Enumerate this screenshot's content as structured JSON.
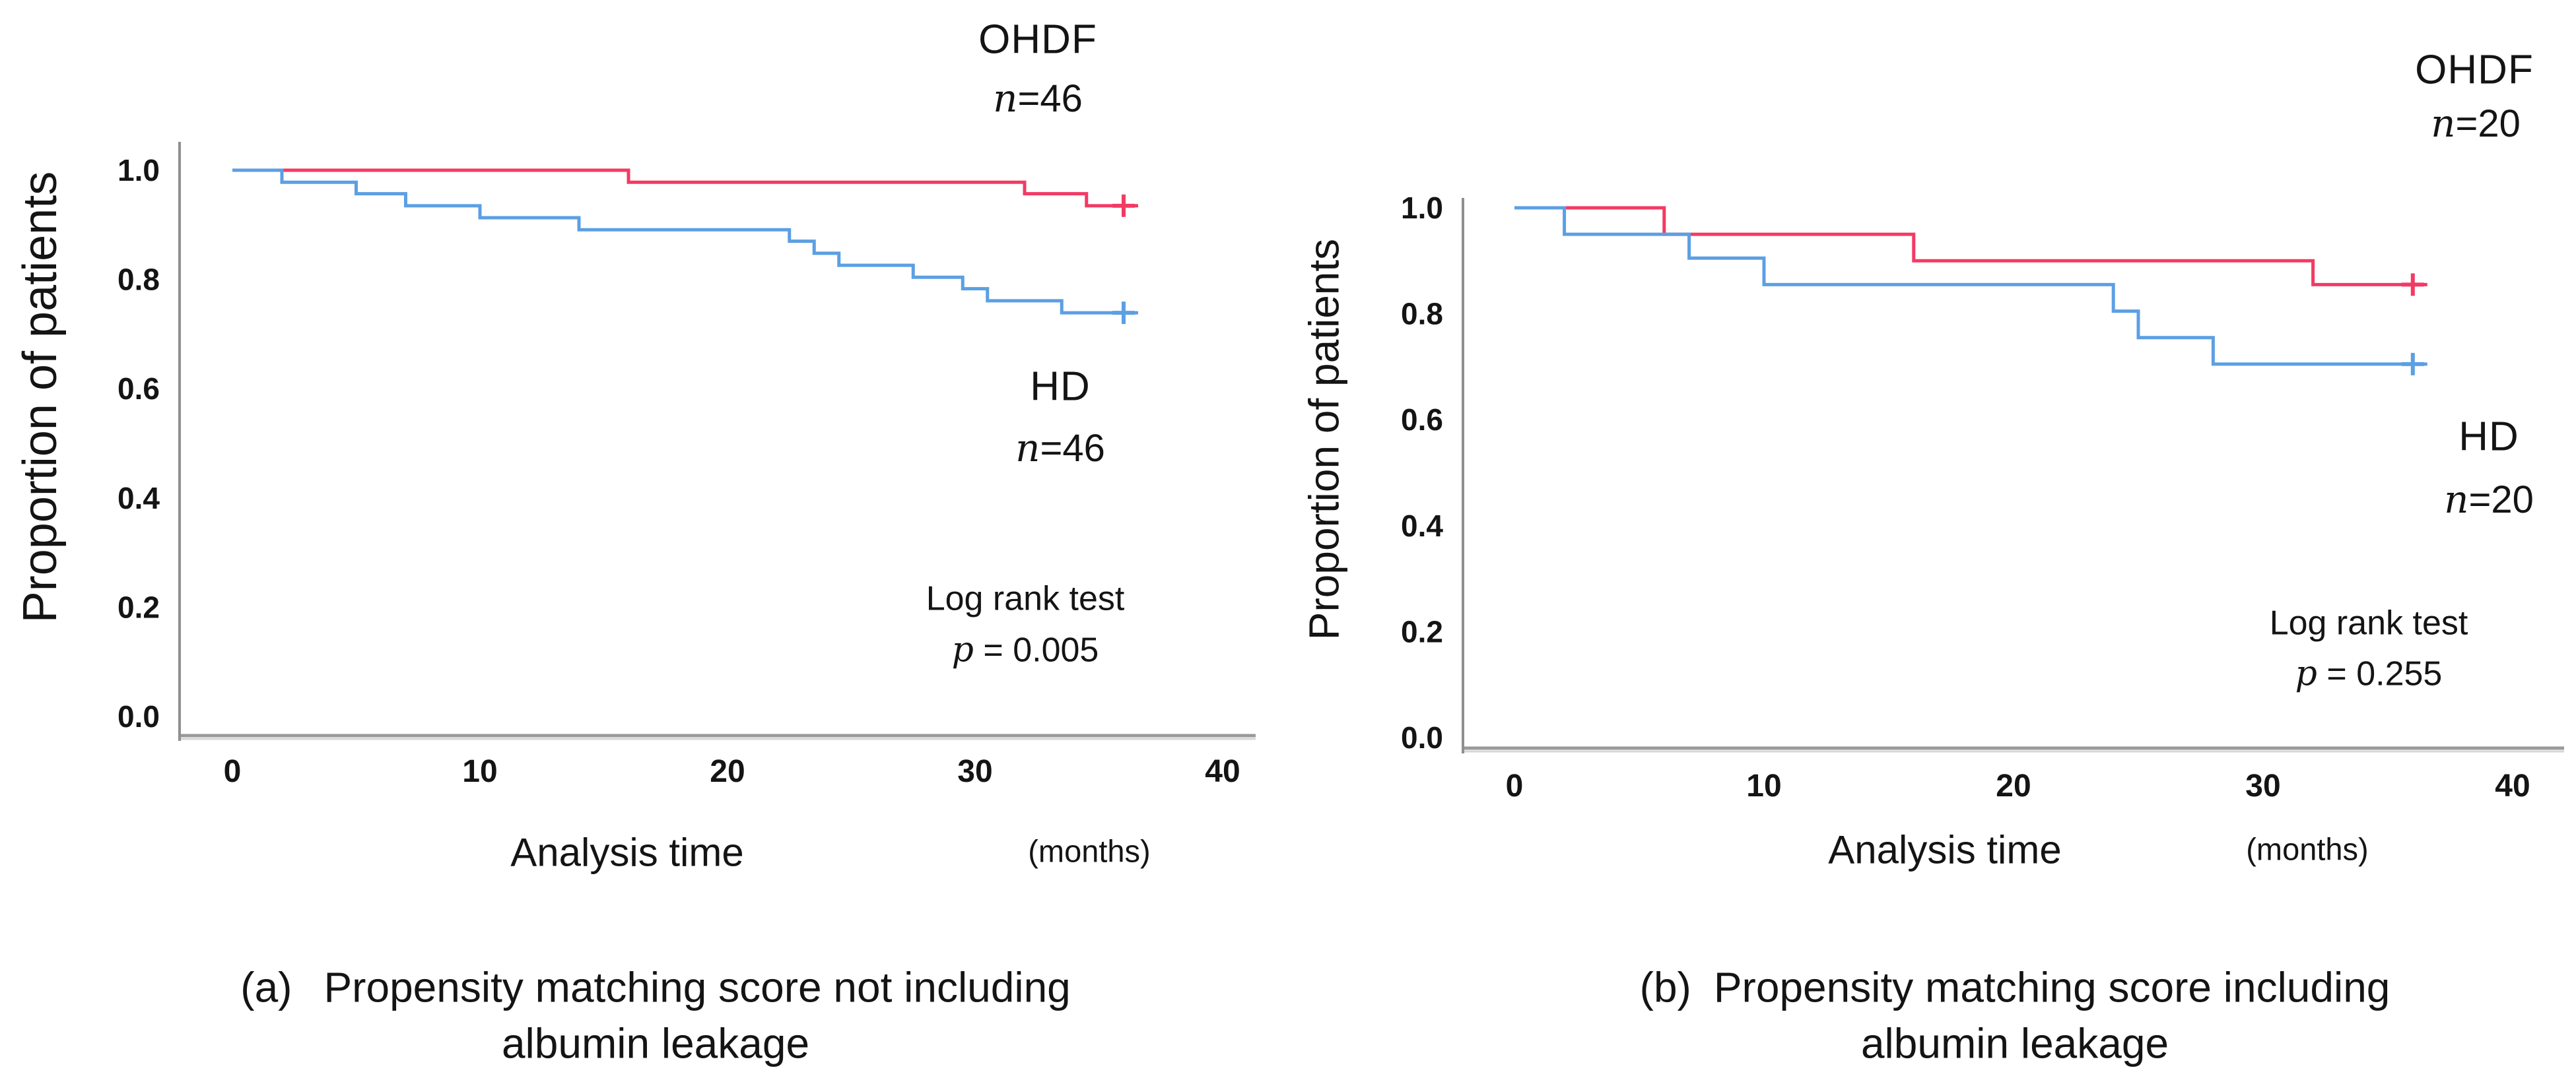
{
  "figure": {
    "background": "#ffffff",
    "axis_color": "#9a9a9a",
    "accent_red": "#f23b64",
    "accent_blue": "#5c9fe3",
    "text_color": "#141414"
  },
  "chart_data": [
    {
      "panel": "a",
      "type": "line",
      "variant": "kaplan-meier-step",
      "ylabel": "Proportion of patients",
      "xlabel": "Analysis time",
      "xlabel_unit": "(months)",
      "grid": false,
      "legend_position": "inline-annotations",
      "xlim": [
        0,
        41
      ],
      "ylim": [
        0.0,
        1.05
      ],
      "xticks": [
        0,
        10,
        20,
        30,
        40
      ],
      "ytick_values": [
        1.0,
        0.8,
        0.6,
        0.4,
        0.2,
        0.0
      ],
      "ytick_labels": [
        "1.0",
        "0.8",
        "0.6",
        "0.4",
        "0.2",
        "0.0"
      ],
      "series": [
        {
          "name": "OHDF",
          "sample_size_label": "n=46",
          "color": "#f23b64",
          "censor_time": 36,
          "final_value": 0.935,
          "steps": [
            [
              0,
              1.0
            ],
            [
              16,
              0.978
            ],
            [
              32,
              0.957
            ],
            [
              34.5,
              0.935
            ]
          ]
        },
        {
          "name": "HD",
          "sample_size_label": "n=46",
          "color": "#5c9fe3",
          "censor_time": 36,
          "final_value": 0.739,
          "steps": [
            [
              0,
              1.0
            ],
            [
              2,
              0.978
            ],
            [
              5,
              0.957
            ],
            [
              7,
              0.935
            ],
            [
              10,
              0.913
            ],
            [
              14,
              0.891
            ],
            [
              22.5,
              0.87
            ],
            [
              23.5,
              0.848
            ],
            [
              24.5,
              0.826
            ],
            [
              27.5,
              0.804
            ],
            [
              29.5,
              0.783
            ],
            [
              30.5,
              0.761
            ],
            [
              33.5,
              0.739
            ]
          ]
        }
      ],
      "stat_test": {
        "line1": "Log rank test",
        "line2": "p = 0.005"
      },
      "caption": {
        "label": "(a)",
        "line1": "Propensity matching score not including",
        "line2": "albumin leakage"
      }
    },
    {
      "panel": "b",
      "type": "line",
      "variant": "kaplan-meier-step",
      "ylabel": "Proportion of patients",
      "xlabel": "Analysis time",
      "xlabel_unit": "(months)",
      "grid": false,
      "legend_position": "inline-annotations",
      "xlim": [
        0,
        41
      ],
      "ylim": [
        0.0,
        1.05
      ],
      "xticks": [
        0,
        10,
        20,
        30,
        40
      ],
      "ytick_values": [
        1.0,
        0.8,
        0.6,
        0.4,
        0.2,
        0.0
      ],
      "ytick_labels": [
        "1.0",
        "0.8",
        "0.6",
        "0.4",
        "0.2",
        "0.0"
      ],
      "series": [
        {
          "name": "OHDF",
          "sample_size_label": "n=20",
          "color": "#f23b64",
          "censor_time": 36,
          "final_value": 0.855,
          "steps": [
            [
              0,
              1.0
            ],
            [
              6,
              0.95
            ],
            [
              16,
              0.9
            ],
            [
              32,
              0.855
            ]
          ]
        },
        {
          "name": "HD",
          "sample_size_label": "n=20",
          "color": "#5c9fe3",
          "censor_time": 36,
          "final_value": 0.705,
          "steps": [
            [
              0,
              1.0
            ],
            [
              2,
              0.95
            ],
            [
              7,
              0.905
            ],
            [
              10,
              0.855
            ],
            [
              24,
              0.805
            ],
            [
              25,
              0.755
            ],
            [
              28,
              0.705
            ]
          ]
        }
      ],
      "stat_test": {
        "line1": "Log rank test",
        "line2": "p = 0.255"
      },
      "caption": {
        "label": "(b)",
        "line1": "Propensity matching score including",
        "line2": "albumin leakage"
      }
    }
  ]
}
